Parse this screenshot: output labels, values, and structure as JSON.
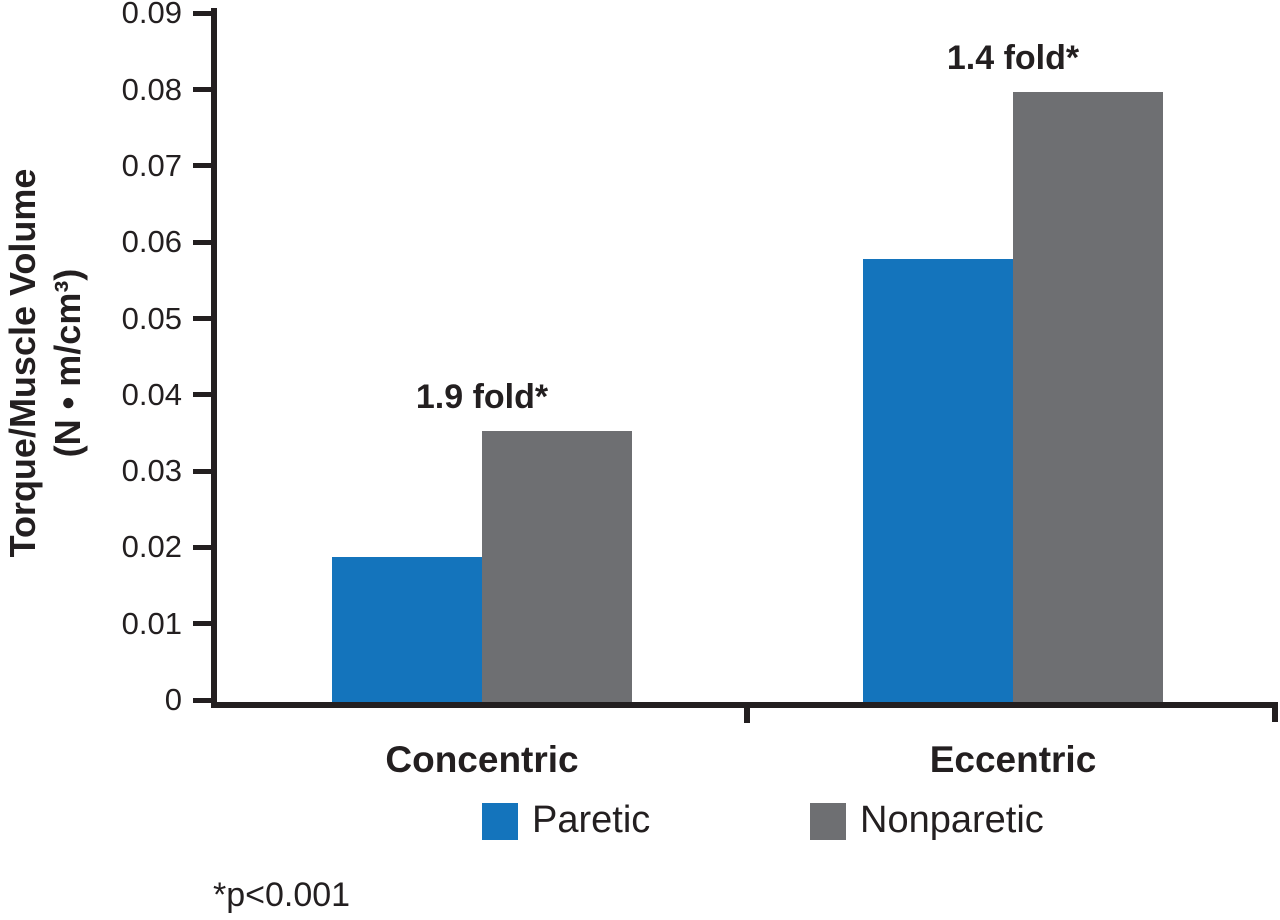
{
  "chart_data": {
    "type": "bar",
    "title": "",
    "ylabel_line1": "Torque/Muscle Volume",
    "ylabel_line2": "(N • m/cm³)",
    "ylim": [
      0,
      0.09
    ],
    "y_tick_step": 0.01,
    "y_ticks": [
      {
        "label": "0",
        "value": 0
      },
      {
        "label": "0.01",
        "value": 0.01
      },
      {
        "label": "0.02",
        "value": 0.02
      },
      {
        "label": "0.03",
        "value": 0.03
      },
      {
        "label": "0.04",
        "value": 0.04
      },
      {
        "label": "0.05",
        "value": 0.05
      },
      {
        "label": "0.06",
        "value": 0.06
      },
      {
        "label": "0.07",
        "value": 0.07
      },
      {
        "label": "0.08",
        "value": 0.08
      },
      {
        "label": "0.09",
        "value": 0.09
      }
    ],
    "categories": [
      "Concentric",
      "Eccentric"
    ],
    "series": [
      {
        "name": "Paretic",
        "color": "#1474BC",
        "values": [
          0.019,
          0.058
        ]
      },
      {
        "name": "Nonparetic",
        "color": "#6E6F72",
        "values": [
          0.0355,
          0.08
        ]
      }
    ],
    "annotations": [
      {
        "group": "Concentric",
        "text": "1.9 fold*"
      },
      {
        "group": "Eccentric",
        "text": "1.4 fold*"
      }
    ],
    "legend": [
      {
        "label": "Paretic",
        "color": "#1474BC"
      },
      {
        "label": "Nonparetic",
        "color": "#6E6F72"
      }
    ],
    "legend_position": "bottom-center",
    "footnote": "*p<0.001",
    "grid": false,
    "axis_color": "#231f20"
  }
}
